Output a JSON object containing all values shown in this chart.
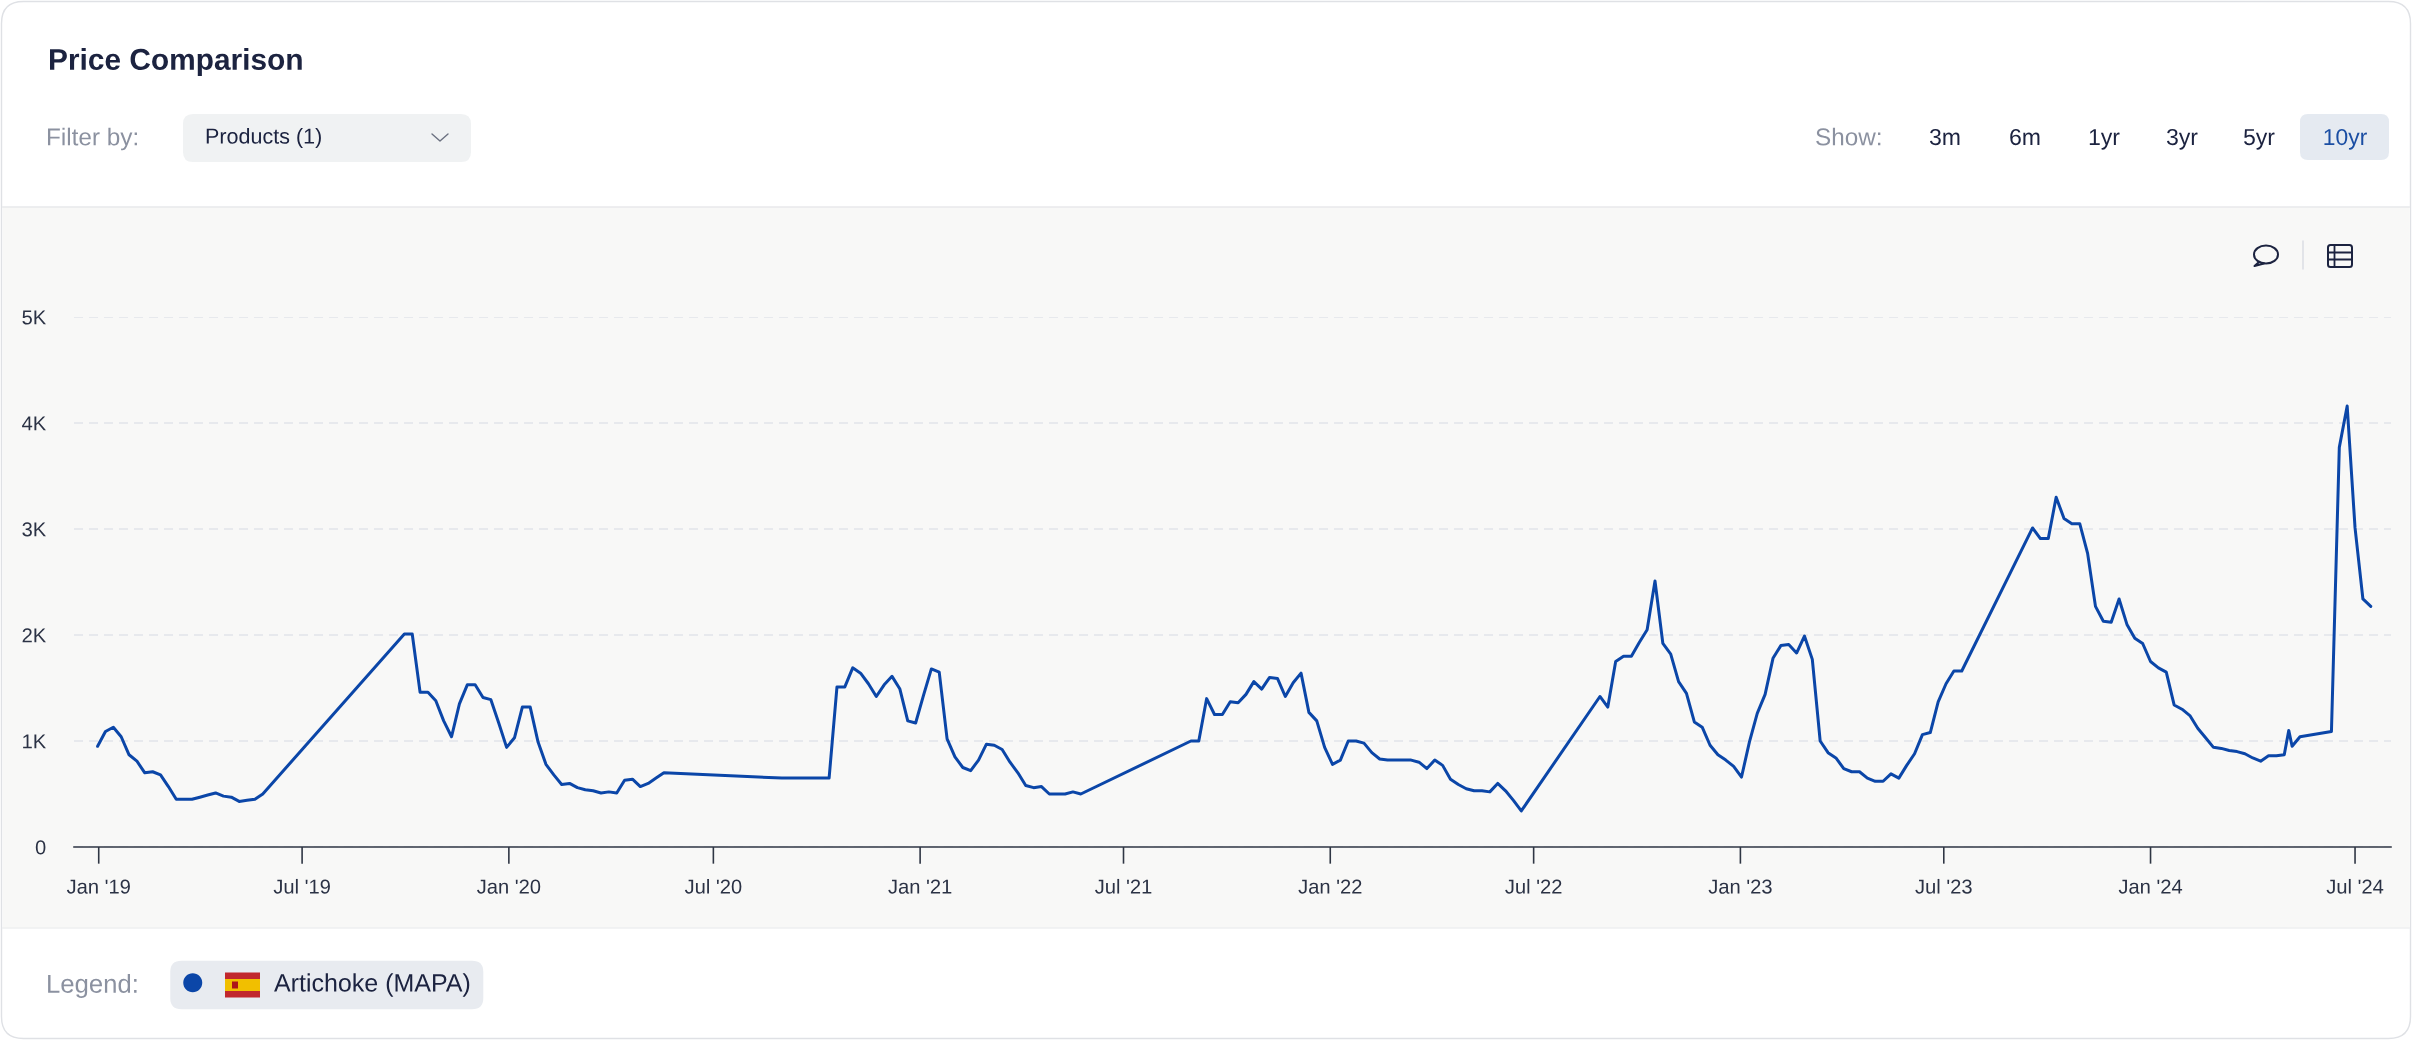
{
  "chart_data": {
    "type": "line",
    "title": "Price Comparison",
    "annotations": [
      "Filter by:",
      "Products (1)",
      "Show:",
      "3m",
      "6m",
      "1yr",
      "3yr",
      "5yr",
      "10yr"
    ],
    "legend_title": "Legend:",
    "legend": "bottom left",
    "grid": "y",
    "x": [
      "2018-12-31",
      "2019-01-07",
      "2019-01-14",
      "2019-01-21",
      "2019-01-28",
      "2019-02-04",
      "2019-02-11",
      "2019-02-18",
      "2019-02-25",
      "2019-03-04",
      "2019-03-11",
      "2019-03-18",
      "2019-03-25",
      "2019-04-01",
      "2019-04-08",
      "2019-04-15",
      "2019-04-22",
      "2019-04-29",
      "2019-05-06",
      "2019-05-13",
      "2019-05-20",
      "2019-05-27",
      "2019-09-30",
      "2019-10-07",
      "2019-10-14",
      "2019-10-21",
      "2019-10-28",
      "2019-11-04",
      "2019-11-11",
      "2019-11-18",
      "2019-11-25",
      "2019-12-02",
      "2019-12-09",
      "2019-12-16",
      "2019-12-23",
      "2019-12-30",
      "2020-01-06",
      "2020-01-13",
      "2020-01-20",
      "2020-01-27",
      "2020-02-03",
      "2020-02-10",
      "2020-02-17",
      "2020-02-24",
      "2020-03-02",
      "2020-03-09",
      "2020-03-16",
      "2020-03-23",
      "2020-03-30",
      "2020-04-06",
      "2020-04-13",
      "2020-04-20",
      "2020-04-27",
      "2020-05-04",
      "2020-05-11",
      "2020-05-18",
      "2020-08-31",
      "2020-10-12",
      "2020-10-19",
      "2020-10-26",
      "2020-11-02",
      "2020-11-09",
      "2020-11-16",
      "2020-11-23",
      "2020-11-30",
      "2020-12-07",
      "2020-12-14",
      "2020-12-21",
      "2020-12-28",
      "2021-01-04",
      "2021-01-11",
      "2021-01-18",
      "2021-01-25",
      "2021-02-01",
      "2021-02-08",
      "2021-02-15",
      "2021-02-22",
      "2021-03-01",
      "2021-03-08",
      "2021-03-15",
      "2021-03-22",
      "2021-03-29",
      "2021-04-05",
      "2021-04-12",
      "2021-04-19",
      "2021-04-26",
      "2021-05-03",
      "2021-05-10",
      "2021-05-17",
      "2021-05-24",
      "2021-08-30",
      "2021-09-06",
      "2021-09-13",
      "2021-09-20",
      "2021-09-27",
      "2021-10-04",
      "2021-10-11",
      "2021-10-18",
      "2021-10-25",
      "2021-11-01",
      "2021-11-08",
      "2021-11-15",
      "2021-11-22",
      "2021-11-29",
      "2021-12-06",
      "2021-12-13",
      "2021-12-20",
      "2021-12-27",
      "2022-01-03",
      "2022-01-10",
      "2022-01-17",
      "2022-01-24",
      "2022-01-31",
      "2022-02-07",
      "2022-02-14",
      "2022-02-21",
      "2022-02-28",
      "2022-03-07",
      "2022-03-14",
      "2022-03-21",
      "2022-03-28",
      "2022-04-04",
      "2022-04-11",
      "2022-04-18",
      "2022-04-25",
      "2022-05-02",
      "2022-05-09",
      "2022-05-16",
      "2022-05-23",
      "2022-05-30",
      "2022-06-06",
      "2022-06-13",
      "2022-06-20",
      "2022-08-29",
      "2022-09-05",
      "2022-09-12",
      "2022-09-19",
      "2022-09-26",
      "2022-10-03",
      "2022-10-10",
      "2022-10-17",
      "2022-10-24",
      "2022-10-31",
      "2022-11-07",
      "2022-11-14",
      "2022-11-21",
      "2022-11-28",
      "2022-12-05",
      "2022-12-12",
      "2022-12-19",
      "2022-12-26",
      "2023-01-02",
      "2023-01-09",
      "2023-01-16",
      "2023-01-23",
      "2023-01-30",
      "2023-02-06",
      "2023-02-13",
      "2023-02-20",
      "2023-02-27",
      "2023-03-06",
      "2023-03-13",
      "2023-03-20",
      "2023-03-27",
      "2023-04-03",
      "2023-04-10",
      "2023-04-17",
      "2023-04-24",
      "2023-05-01",
      "2023-05-08",
      "2023-05-15",
      "2023-05-22",
      "2023-05-29",
      "2023-06-05",
      "2023-06-12",
      "2023-06-19",
      "2023-06-26",
      "2023-07-03",
      "2023-07-10",
      "2023-07-17",
      "2023-09-18",
      "2023-09-25",
      "2023-10-02",
      "2023-10-09",
      "2023-10-16",
      "2023-10-23",
      "2023-10-30",
      "2023-11-06",
      "2023-11-13",
      "2023-11-20",
      "2023-11-27",
      "2023-12-04",
      "2023-12-11",
      "2023-12-18",
      "2023-12-25",
      "2024-01-01",
      "2024-01-08",
      "2024-01-15",
      "2024-01-22",
      "2024-01-29",
      "2024-02-05",
      "2024-02-12",
      "2024-02-19",
      "2024-02-26",
      "2024-03-04",
      "2024-03-11",
      "2024-03-18",
      "2024-03-25",
      "2024-04-01",
      "2024-04-08",
      "2024-04-15",
      "2024-04-22",
      "2024-04-29",
      "2024-05-03",
      "2024-05-06",
      "2024-05-13",
      "2024-06-10",
      "2024-06-17",
      "2024-06-24",
      "2024-07-01",
      "2024-07-08",
      "2024-07-15"
    ],
    "series": [
      {
        "name": "Artichoke (MAPA)",
        "color": "#0b46a8",
        "values": [
          950,
          1090,
          1130,
          1040,
          870,
          810,
          700,
          710,
          680,
          570,
          450,
          450,
          450,
          470,
          490,
          510,
          480,
          470,
          430,
          440,
          450,
          500,
          2010,
          2010,
          1460,
          1460,
          1380,
          1190,
          1040,
          1350,
          1530,
          1530,
          1410,
          1390,
          1170,
          940,
          1030,
          1320,
          1320,
          990,
          780,
          680,
          590,
          600,
          560,
          540,
          530,
          510,
          520,
          510,
          630,
          640,
          570,
          600,
          650,
          700,
          650,
          650,
          1510,
          1510,
          1690,
          1640,
          1540,
          1420,
          1530,
          1610,
          1490,
          1190,
          1170,
          1430,
          1680,
          1650,
          1020,
          850,
          750,
          720,
          820,
          970,
          960,
          920,
          800,
          700,
          580,
          560,
          570,
          500,
          500,
          500,
          520,
          500,
          1000,
          1000,
          1400,
          1250,
          1250,
          1370,
          1360,
          1440,
          1560,
          1490,
          1600,
          1590,
          1420,
          1550,
          1640,
          1270,
          1190,
          940,
          780,
          820,
          1000,
          1000,
          980,
          890,
          830,
          820,
          820,
          820,
          820,
          800,
          740,
          820,
          770,
          640,
          590,
          550,
          530,
          530,
          520,
          600,
          530,
          440,
          340,
          1420,
          1320,
          1750,
          1800,
          1800,
          1930,
          2050,
          2510,
          1920,
          1820,
          1560,
          1450,
          1180,
          1130,
          960,
          870,
          820,
          760,
          660,
          990,
          1260,
          1440,
          1780,
          1900,
          1910,
          1830,
          1990,
          1770,
          1000,
          890,
          840,
          740,
          710,
          710,
          650,
          620,
          620,
          690,
          650,
          770,
          880,
          1060,
          1080,
          1370,
          1540,
          1660,
          1660,
          3010,
          2910,
          2910,
          3300,
          3100,
          3050,
          3050,
          2770,
          2270,
          2130,
          2120,
          2340,
          2100,
          1970,
          1920,
          1750,
          1690,
          1650,
          1340,
          1300,
          1240,
          1120,
          1030,
          940,
          930,
          910,
          900,
          880,
          840,
          810,
          860,
          860,
          870,
          1100,
          950,
          1040,
          1090,
          3770,
          4160,
          3010,
          2340,
          2270
        ]
      }
    ],
    "xlim": [
      "2018-12-10",
      "2024-08-02"
    ],
    "xticks": [
      {
        "value": "2019-01-01",
        "label": "Jan '19"
      },
      {
        "value": "2019-07-01",
        "label": "Jul '19"
      },
      {
        "value": "2020-01-01",
        "label": "Jan '20"
      },
      {
        "value": "2020-07-01",
        "label": "Jul '20"
      },
      {
        "value": "2021-01-01",
        "label": "Jan '21"
      },
      {
        "value": "2021-07-01",
        "label": "Jul '21"
      },
      {
        "value": "2022-01-01",
        "label": "Jan '22"
      },
      {
        "value": "2022-07-01",
        "label": "Jul '22"
      },
      {
        "value": "2023-01-01",
        "label": "Jan '23"
      },
      {
        "value": "2023-07-01",
        "label": "Jul '23"
      },
      {
        "value": "2024-01-01",
        "label": "Jan '24"
      },
      {
        "value": "2024-07-01",
        "label": "Jul '24"
      }
    ],
    "ylim": [
      0,
      5000
    ],
    "yticks": [
      0,
      {
        "value": 1000,
        "label": "1K"
      },
      {
        "value": 2000,
        "label": "2K"
      },
      {
        "value": 3000,
        "label": "3K"
      },
      {
        "value": 4000,
        "label": "4K"
      },
      {
        "value": 5000,
        "label": "5K"
      }
    ]
  }
}
